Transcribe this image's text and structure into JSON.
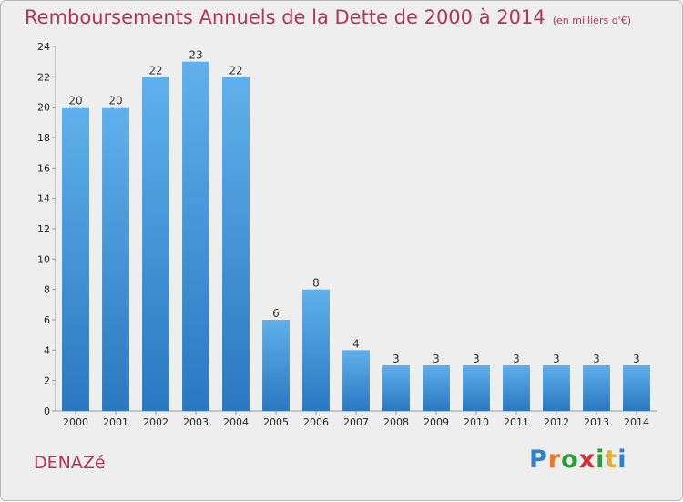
{
  "header": {
    "title": "Remboursements Annuels de la Dette de 2000 à 2014",
    "unit": "(en milliers d'€)"
  },
  "footer": {
    "commune": "DENAZé",
    "logo_letters": [
      "P",
      "r",
      "o",
      "x",
      "i",
      "t",
      "i"
    ],
    "logo_colors": [
      "#2f7fd0",
      "#e8782a",
      "#2f9a3a",
      "#d0303a",
      "#2f9a3a",
      "#e8b02a",
      "#2f7fd0"
    ]
  },
  "chart_data": {
    "type": "bar",
    "categories": [
      "2000",
      "2001",
      "2002",
      "2003",
      "2004",
      "2005",
      "2006",
      "2007",
      "2008",
      "2009",
      "2010",
      "2011",
      "2012",
      "2013",
      "2014"
    ],
    "values": [
      20,
      20,
      22,
      23,
      22,
      6,
      8,
      4,
      3,
      3,
      3,
      3,
      3,
      3,
      3
    ],
    "ylim": [
      0,
      24
    ],
    "yticks": [
      0,
      2,
      4,
      6,
      8,
      10,
      12,
      14,
      16,
      18,
      20,
      22,
      24
    ],
    "grid": false,
    "bar_color": "#4a9fe0"
  }
}
